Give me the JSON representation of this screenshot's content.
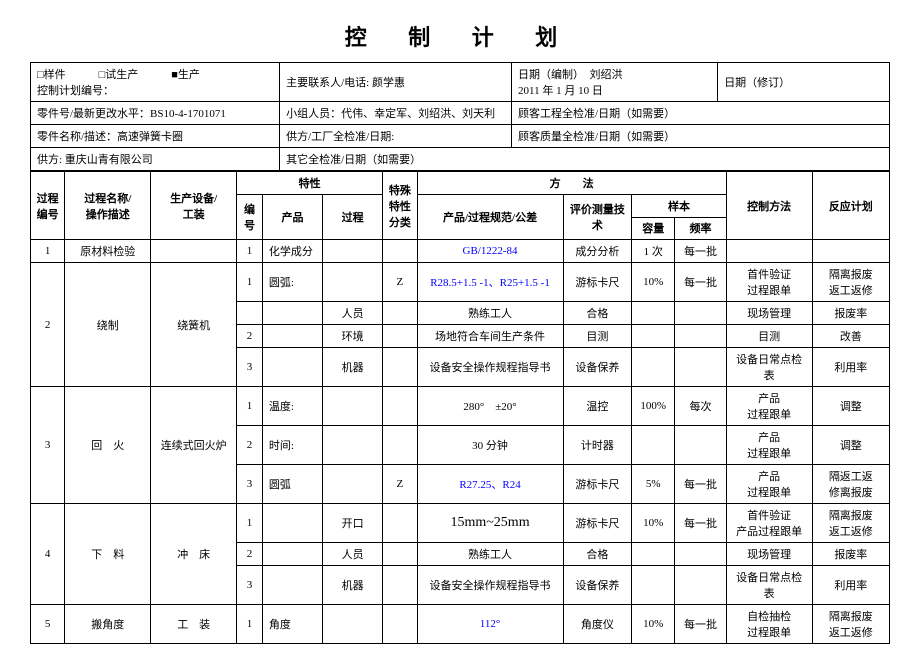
{
  "title": "控 制 计 划",
  "header": {
    "row1": {
      "plan_type": "□样件　　　□试生产　　　■生产\n控制计划编号：",
      "contact": "主要联系人/电话: 颜学惠",
      "date_created": "日期（编制）　刘绍洪\n2011 年 1 月 10 日",
      "date_revised": "日期（修订）"
    },
    "row2": {
      "part_no": "零件号/最新更改水平：BS10-4-1701071",
      "team": "小组人员：代伟、幸定军、刘绍洪、刘天利",
      "cust_eng": "顾客工程全检准/日期（如需要）"
    },
    "row3": {
      "part_name": "零件名称/描述：高速弹簧卡圈",
      "supplier_approval": "供方/工厂全检准/日期:",
      "cust_quality": "顾客质量全检准/日期（如需要）"
    },
    "row4": {
      "supplier": "供方: 重庆山青有限公司",
      "other_approval": "其它全检准/日期（如需要）"
    }
  },
  "columns": {
    "proc_no": "过程\n编号",
    "proc_name": "过程名称/\n操作描述",
    "equipment": "生产设备/\n工装",
    "char_group": "特性",
    "char_no": "编\n号",
    "product": "产品",
    "process": "过程",
    "special": "特殊\n特性\n分类",
    "method_group": "方　　法",
    "spec": "产品/过程规范/公差",
    "eval": "评价测量技\n术",
    "sample_group": "样本",
    "capacity": "容量",
    "freq": "频率",
    "control": "控制方法",
    "reaction": "反应计划"
  },
  "rows": [
    {
      "proc_no": "1",
      "proc_name": "原材料检验",
      "equipment": "",
      "sub": [
        {
          "n": "1",
          "product": "化学成分",
          "process": "",
          "sp": "",
          "spec": "GB/1222-84",
          "spec_blue": true,
          "eval": "成分分析",
          "cap": "1 次",
          "freq": "每一批",
          "ctrl": "",
          "react": ""
        }
      ]
    },
    {
      "proc_no": "2",
      "proc_name": "绕制",
      "equipment": "绕簧机",
      "sub": [
        {
          "n": "1",
          "product": "圆弧:",
          "process": "",
          "sp": "Z",
          "spec": "R28.5+1.5 -1、R25+1.5 -1",
          "spec_blue": true,
          "eval": "游标卡尺",
          "cap": "10%",
          "freq": "每一批",
          "ctrl": "首件验证\n过程跟单",
          "react": "隔离报废\n返工返修"
        },
        {
          "n": "",
          "product": "",
          "process": "人员",
          "sp": "",
          "spec": "熟练工人",
          "eval": "合格",
          "cap": "",
          "freq": "",
          "ctrl": "现场管理",
          "react": "报废率"
        },
        {
          "n": "2",
          "product": "",
          "process": "环境",
          "sp": "",
          "spec": "场地符合车间生产条件",
          "eval": "目测",
          "cap": "",
          "freq": "",
          "ctrl": "目测",
          "react": "改善"
        },
        {
          "n": "3",
          "product": "",
          "process": "机器",
          "sp": "",
          "spec": "设备安全操作规程指导书",
          "eval": "设备保养",
          "cap": "",
          "freq": "",
          "ctrl": "设备日常点检表",
          "react": "利用率"
        }
      ]
    },
    {
      "proc_no": "3",
      "proc_name": "回　火",
      "equipment": "连续式回火炉",
      "sub": [
        {
          "n": "1",
          "product": "温度:",
          "process": "",
          "sp": "",
          "spec": "280°　±20°",
          "eval": "温控",
          "cap": "100%",
          "freq": "每次",
          "ctrl": "产品\n过程跟单",
          "react": "调整"
        },
        {
          "n": "2",
          "product": "时间:",
          "process": "",
          "sp": "",
          "spec": "30 分钟",
          "eval": "计时器",
          "cap": "",
          "freq": "",
          "ctrl": "产品\n过程跟单",
          "react": "调整"
        },
        {
          "n": "3",
          "product": "圆弧",
          "process": "",
          "sp": "Z",
          "spec": "R27.25、R24",
          "spec_blue": true,
          "eval": "游标卡尺",
          "cap": "5%",
          "freq": "每一批",
          "ctrl": "产品\n过程跟单",
          "react": "隔返工返\n修离报废"
        }
      ]
    },
    {
      "proc_no": "4",
      "proc_name": "下　料",
      "equipment": "冲　床",
      "sub": [
        {
          "n": "1",
          "product": "",
          "process": "开口",
          "sp": "",
          "spec": "15mm~25mm",
          "spec_big": true,
          "eval": "游标卡尺",
          "cap": "10%",
          "freq": "每一批",
          "ctrl": "首件验证\n产品过程跟单",
          "react": "隔离报废\n返工返修"
        },
        {
          "n": "2",
          "product": "",
          "process": "人员",
          "sp": "",
          "spec": "熟练工人",
          "eval": "合格",
          "cap": "",
          "freq": "",
          "ctrl": "现场管理",
          "react": "报废率"
        },
        {
          "n": "3",
          "product": "",
          "process": "机器",
          "sp": "",
          "spec": "设备安全操作规程指导书",
          "eval": "设备保养",
          "cap": "",
          "freq": "",
          "ctrl": "设备日常点检表",
          "react": "利用率"
        }
      ]
    },
    {
      "proc_no": "5",
      "proc_name": "搬角度",
      "equipment": "工　装",
      "sub": [
        {
          "n": "1",
          "product": "角度",
          "process": "",
          "sp": "",
          "spec": "112°",
          "spec_blue": true,
          "eval": "角度仪",
          "cap": "10%",
          "freq": "每一批",
          "ctrl": "自检抽检\n过程跟单",
          "react": "隔离报废\n返工返修"
        }
      ]
    }
  ]
}
